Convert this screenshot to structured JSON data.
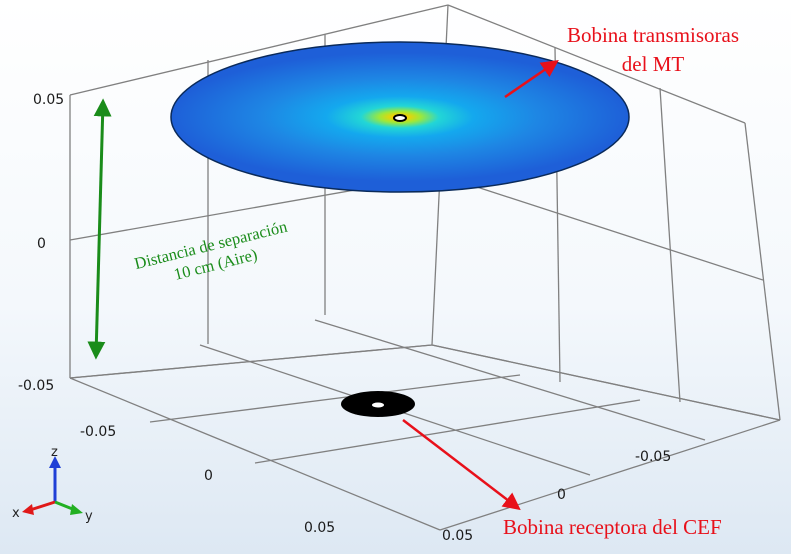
{
  "ticks": {
    "z_top": "0.05",
    "z_mid": "0",
    "z_bottom": "-0.05",
    "x_neg": "-0.05",
    "x_zero": "0",
    "x_pos": "0.05",
    "y_neg": "-0.05",
    "y_zero": "0",
    "y_pos": "0.05"
  },
  "annotations": {
    "transmitter_line1": "Bobina transmisoras",
    "transmitter_line2": "del MT",
    "separation_line1": "Distancia de separación",
    "separation_line2": "10 cm (Aire)",
    "receiver": "Bobina receptora del CEF"
  },
  "triad": {
    "z": "z",
    "x": "x",
    "y": "y"
  },
  "colors": {
    "annotation_red": "#e8101a",
    "annotation_green": "#1a8c1a",
    "triad_z": "#1f3fd6",
    "triad_x": "#e01818",
    "triad_y": "#22b022",
    "coil_outer": "#1e5fd8",
    "coil_center": "#f5d000",
    "receiver_coil": "#000000"
  }
}
